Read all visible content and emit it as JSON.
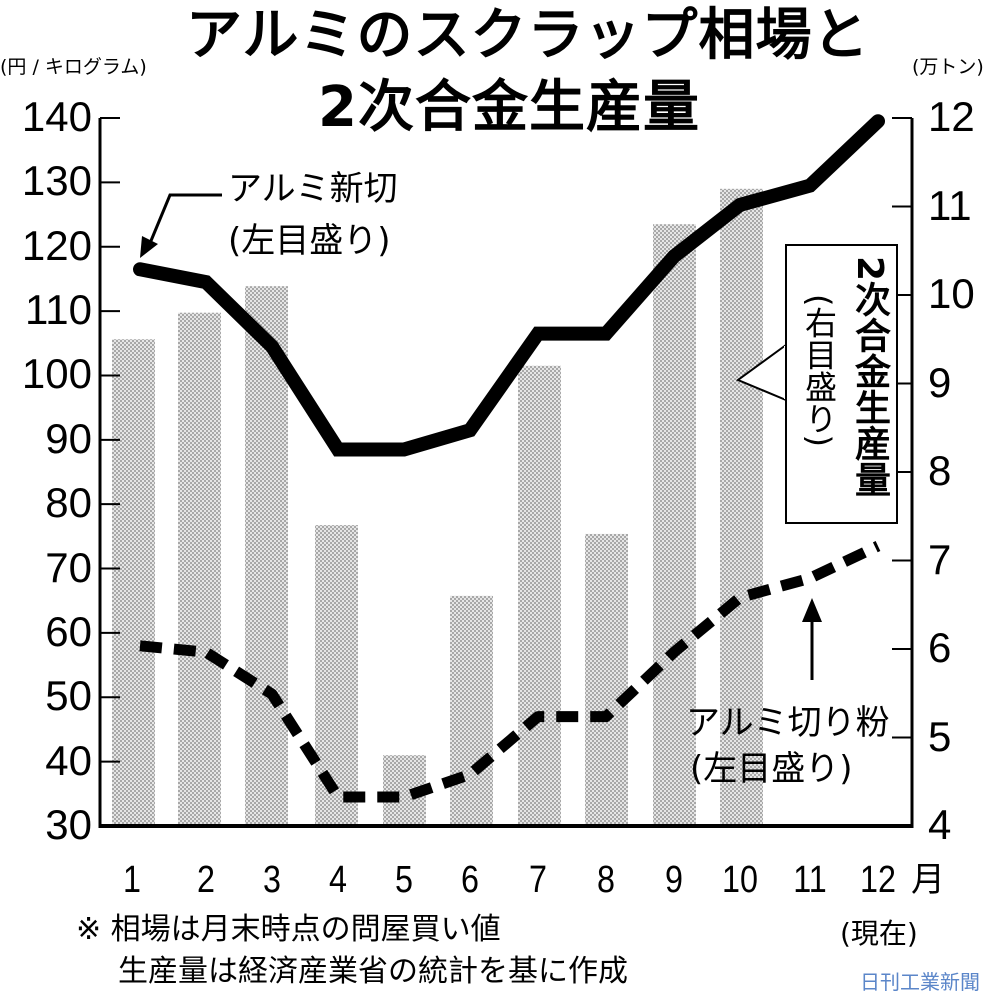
{
  "title": {
    "line1": "アルミのスクラップ相場と",
    "line2": "2次合金生産量"
  },
  "left_axis": {
    "unit": "(円 / キログラム)",
    "ticks": [
      "140",
      "130",
      "120",
      "110",
      "100",
      "90",
      "80",
      "70",
      "60",
      "50",
      "40",
      "30"
    ]
  },
  "right_axis": {
    "unit": "(万トン)",
    "ticks": [
      "12",
      "11",
      "10",
      "9",
      "8",
      "7",
      "6",
      "5",
      "4"
    ]
  },
  "x_axis": {
    "ticks": [
      "1",
      "2",
      "3",
      "4",
      "5",
      "6",
      "7",
      "8",
      "9",
      "10",
      "11",
      "12"
    ],
    "unit": "月",
    "current_label": "(現在)"
  },
  "annotations": {
    "new_scrap_name": "アルミ新切",
    "new_scrap_scale": "(左目盛り)",
    "alloy_name": "2次合金生産量",
    "alloy_scale": "(右目盛り)",
    "powder_name": "アルミ切り粉",
    "powder_scale": "(左目盛り)"
  },
  "notes": {
    "line1": "※ 相場は月末時点の問屋買い値",
    "line2": "生産量は経済産業省の統計を基に作成"
  },
  "credit": "日刊工業新聞",
  "colors": {
    "bar_fill": "#c8c8c8",
    "line": "#000000",
    "credit": "#5b86c9"
  },
  "chart_data": {
    "type": "bar+line",
    "title": "アルミのスクラップ相場と2次合金生産量",
    "categories": [
      "1",
      "2",
      "3",
      "4",
      "5",
      "6",
      "7",
      "8",
      "9",
      "10",
      "11",
      "12"
    ],
    "xlabel": "月",
    "ylabel_left": "円 / キログラム",
    "ylabel_right": "万トン",
    "ylim_left": [
      30,
      140
    ],
    "ylim_right": [
      4,
      12
    ],
    "grid": false,
    "series": [
      {
        "name": "2次合金生産量",
        "type": "bar",
        "axis": "right",
        "values": [
          9.5,
          9.8,
          10.1,
          7.4,
          4.8,
          6.6,
          9.2,
          7.3,
          10.8,
          11.2,
          null,
          null
        ]
      },
      {
        "name": "アルミ新切",
        "type": "line",
        "style": "solid",
        "axis": "left",
        "values": [
          116.5,
          114.5,
          104.5,
          88.5,
          88.5,
          91.5,
          106.5,
          106.5,
          118.5,
          126.5,
          129.5,
          139.5
        ]
      },
      {
        "name": "アルミ切り粉",
        "type": "line",
        "style": "dashed",
        "axis": "left",
        "values": [
          58,
          57,
          50.5,
          34.5,
          34.5,
          38,
          47,
          47,
          57,
          65.5,
          68.5,
          73.5
        ]
      }
    ]
  }
}
